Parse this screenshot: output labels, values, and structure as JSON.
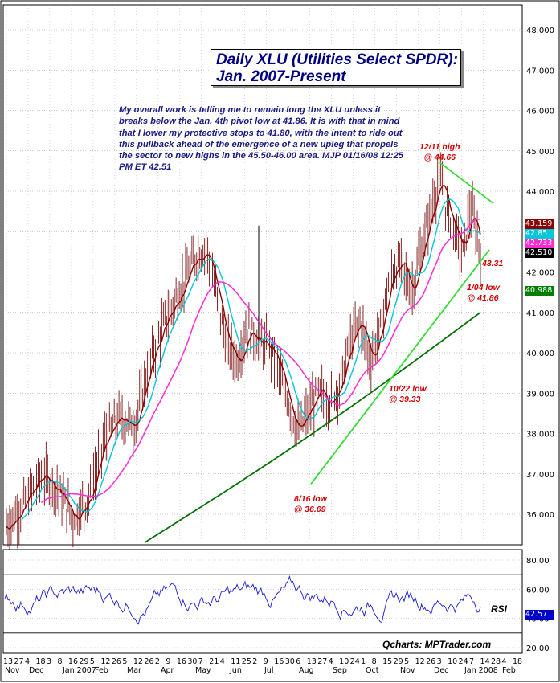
{
  "chart_data": {
    "type": "ohlc",
    "title_line1": "Daily XLU (Utilities Select SPDR):",
    "title_line2": "Jan. 2007-Present",
    "commentary": "My overall work is telling me to remain long the XLU unless it breaks below the Jan. 4th pivot low at 41.86. It is with that in mind that I lower my protective stops to 41.80, with the intent to ride out this pullback ahead of the emergence of a new upleg that propels the sector to new highs in the 45.50-46.00 area.  MJP  01/16/08  12:25 PM ET 42.51",
    "y_ticks": [
      "48.000",
      "47.000",
      "46.000",
      "45.000",
      "44.000",
      "43.000",
      "42.000",
      "41.000",
      "40.000",
      "39.000",
      "38.000",
      "37.000",
      "36.000"
    ],
    "ylim": [
      35.3,
      48.4
    ],
    "x_labels": [
      "13",
      "27",
      "4",
      "18",
      "3",
      "8",
      "16",
      "29",
      "5",
      "12",
      "26",
      "5",
      "12",
      "26",
      "2",
      "9",
      "16",
      "30",
      "7",
      "21",
      "4",
      "11",
      "25",
      "2",
      "9",
      "16",
      "30",
      "6",
      "13",
      "27",
      "4",
      "10",
      "24",
      "1",
      "8",
      "15",
      "29",
      "5",
      "12",
      "26",
      "3",
      "10",
      "24",
      "7",
      "14",
      "28",
      "4",
      "18"
    ],
    "month_labels": [
      "Nov",
      "Dec",
      "Jan 2007",
      "Feb",
      "Mar",
      "Apr",
      "May",
      "Jun",
      "Jul",
      "Aug",
      "Sep",
      "Oct",
      "Nov",
      "Dec",
      "Jan 2008",
      "Feb"
    ],
    "price_tags": [
      {
        "value": "43.159",
        "bg": "#8b0000",
        "fg": "#ffffff"
      },
      {
        "value": "42.85",
        "bg": "#00c8d8",
        "fg": "#ffffff"
      },
      {
        "value": "42.733",
        "bg": "#ff2ad4",
        "fg": "#ffffff"
      },
      {
        "value": "42.510",
        "bg": "#000000",
        "fg": "#ffffff"
      },
      {
        "value": "40.988",
        "bg": "#008000",
        "fg": "#ffffff"
      }
    ],
    "annotations": [
      {
        "id": "high-1211",
        "line1": "12/11 high",
        "line2": "@ 44.66"
      },
      {
        "id": "level-4331",
        "line1": "43.31",
        "line2": ""
      },
      {
        "id": "low-0104",
        "line1": "1/04 low",
        "line2": "@ 41.86"
      },
      {
        "id": "low-1022",
        "line1": "10/22 low",
        "line2": "@ 39.33"
      },
      {
        "id": "low-0816",
        "line1": "8/16 low",
        "line2": "@ 36.69"
      }
    ],
    "series": [
      {
        "name": "price",
        "color": "#000000"
      },
      {
        "name": "ma-short",
        "color": "#8b0000"
      },
      {
        "name": "ma-mid",
        "color": "#00c8d8"
      },
      {
        "name": "ma-long",
        "color": "#ff2ad4"
      },
      {
        "name": "ma-200",
        "color": "#007000"
      }
    ],
    "key_points": {
      "aug16_low": 36.69,
      "oct22_low": 39.33,
      "dec11_high": 44.66,
      "jan04_low": 41.86,
      "last": 42.51
    },
    "rsi": {
      "label": "RSI",
      "ticks": [
        "80.00",
        "60.00",
        "40.00",
        "20.00"
      ],
      "ylim": [
        15,
        90
      ],
      "current": "42.57",
      "current_bg": "#0000cc",
      "overbought": 70,
      "oversold": 30
    },
    "credit": "Qcharts: MPTrader.com"
  }
}
